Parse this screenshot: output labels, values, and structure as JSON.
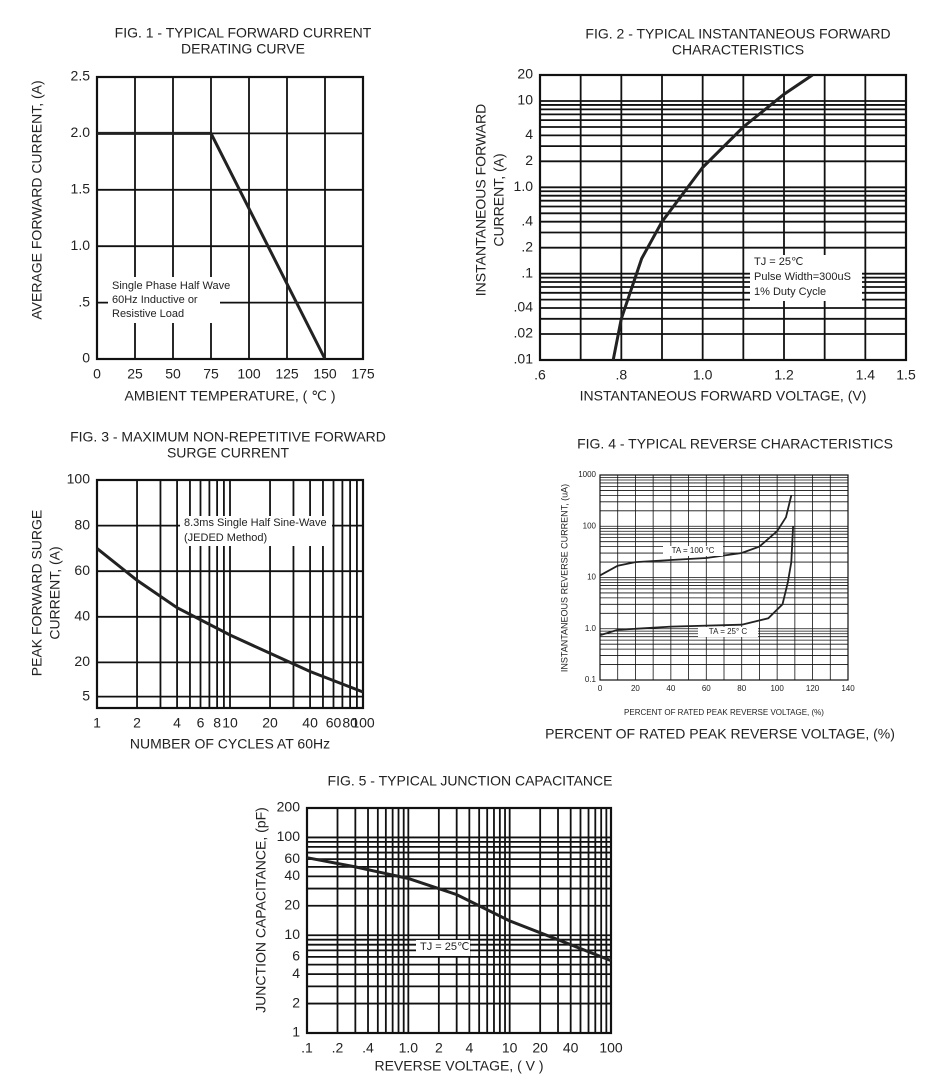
{
  "chart_data": [
    {
      "type": "line",
      "title": [
        "FIG. 1 - TYPICAL FORWARD CURRENT",
        "DERATING CURVE"
      ],
      "xlabel": "AMBIENT TEMPERATURE, ( ℃ )",
      "ylabel": [
        "AVERAGE FORWARD CURRENT, (A)"
      ],
      "xlim": [
        0,
        175
      ],
      "ylim": [
        0,
        2.5
      ],
      "xticks": [
        0,
        25,
        50,
        75,
        100,
        125,
        150,
        175
      ],
      "yticks": [
        0,
        {
          "value": 0.5,
          "label": ".5"
        },
        {
          "value": 1,
          "label": "1.0"
        },
        1.5,
        {
          "value": 2,
          "label": "2.0"
        },
        2.5
      ],
      "grid": true,
      "annotation": [
        "Single Phase Half Wave",
        "60Hz Inductive or",
        "Resistive Load"
      ],
      "series": [
        {
          "color": "#222222",
          "x": [
            0,
            75,
            150
          ],
          "values": [
            2,
            2,
            0
          ]
        }
      ]
    },
    {
      "type": "line",
      "title": [
        "FIG. 2 - TYPICAL INSTANTANEOUS FORWARD",
        "CHARACTERISTICS"
      ],
      "xlabel": "INSTANTANEOUS FORWARD VOLTAGE, (V)",
      "ylabel": [
        "INSTANTANEOUS FORWARD",
        "CURRENT, (A)"
      ],
      "yscale": "log",
      "xlim": [
        0.6,
        1.5
      ],
      "ylim": [
        0.01,
        20
      ],
      "xticks": [
        {
          "value": 0.6,
          "label": ".6"
        },
        {
          "value": 0.8,
          "label": ".8"
        },
        {
          "value": 1,
          "label": "1.0"
        },
        1.2,
        1.4,
        1.5
      ],
      "yticks": [
        {
          "value": 0.01,
          "label": ".01"
        },
        {
          "value": 0.02,
          "label": ".02"
        },
        {
          "value": 0.04,
          "label": ".04"
        },
        {
          "value": 0.1,
          "label": ".1"
        },
        {
          "value": 0.2,
          "label": ".2"
        },
        {
          "value": 0.4,
          "label": ".4"
        },
        {
          "value": 1,
          "label": "1.0"
        },
        2,
        4,
        10,
        20
      ],
      "xgrid": [
        0.7,
        0.9,
        1.1,
        1.3
      ],
      "ygrid": [
        0.03,
        0.05,
        0.06,
        0.07,
        0.08,
        0.09,
        0.3,
        0.5,
        0.6,
        0.7,
        0.8,
        0.9,
        3,
        5,
        6,
        7,
        8,
        9
      ],
      "grid": true,
      "annotation": [
        "TJ = 25℃",
        "Pulse Width=300uS",
        "1% Duty Cycle"
      ],
      "series": [
        {
          "color": "#222222",
          "x": [
            0.78,
            0.8,
            0.85,
            0.9,
            1.0,
            1.1,
            1.2,
            1.27
          ],
          "values": [
            0.01,
            0.03,
            0.15,
            0.4,
            1.7,
            5,
            12,
            20
          ]
        }
      ]
    },
    {
      "type": "line",
      "title": [
        "FIG. 3 - MAXIMUM NON-REPETITIVE FORWARD",
        "SURGE CURRENT"
      ],
      "xlabel": "NUMBER OF CYCLES AT 60Hz",
      "ylabel": [
        "PEAK FORWARD SURGE",
        "CURRENT, (A)"
      ],
      "xscale": "log",
      "xlim": [
        1,
        100
      ],
      "ylim": [
        0,
        100
      ],
      "xticks": [
        1,
        2,
        4,
        6,
        8,
        10,
        20,
        40,
        60,
        80,
        100
      ],
      "yticks": [
        5,
        20,
        40,
        60,
        80,
        100
      ],
      "xgrid": [
        3,
        5,
        7,
        9,
        30,
        50,
        70,
        90
      ],
      "grid": true,
      "annotation": [
        "8.3ms Single Half Sine-Wave",
        "(JEDED Method)"
      ],
      "series": [
        {
          "color": "#222222",
          "x": [
            1,
            2,
            4,
            10,
            20,
            40,
            100
          ],
          "values": [
            70,
            56,
            44,
            32,
            24,
            16,
            7
          ]
        }
      ]
    },
    {
      "type": "line",
      "title": [
        "FIG. 4 - TYPICAL REVERSE CHARACTERISTICS"
      ],
      "xlabel": "PERCENT OF RATED PEAK REVERSE VOLTAGE, (%)",
      "caption": "PERCENT OF RATED PEAK REVERSE VOLTAGE, (%)",
      "ylabel": [
        "INSTANTANEOUS REVERSE CURRENT, (uA)"
      ],
      "yscale": "log",
      "xlim": [
        0,
        140
      ],
      "ylim": [
        0.1,
        1000
      ],
      "xticks": [
        0,
        20,
        40,
        60,
        80,
        100,
        120,
        140
      ],
      "yticks": [
        0.1,
        {
          "value": 1,
          "label": "1.0"
        },
        10,
        100,
        1000
      ],
      "xgrid": [
        10,
        30,
        50,
        70,
        90,
        110,
        130
      ],
      "ygrid": [
        0.2,
        0.3,
        0.4,
        0.5,
        0.6,
        0.7,
        0.8,
        0.9,
        2,
        3,
        4,
        5,
        6,
        7,
        8,
        9,
        20,
        30,
        40,
        50,
        60,
        70,
        80,
        90,
        200,
        300,
        400,
        500,
        600,
        700,
        800,
        900
      ],
      "grid": true,
      "series": [
        {
          "name": "TA = 100 °C",
          "color": "#222222",
          "x": [
            0,
            10,
            20,
            40,
            60,
            80,
            90,
            100,
            105,
            108
          ],
          "values": [
            11,
            17,
            20,
            22,
            24,
            30,
            40,
            80,
            150,
            400
          ]
        },
        {
          "name": "TA = 25° C",
          "color": "#222222",
          "x": [
            0,
            10,
            40,
            80,
            95,
            103,
            106,
            108,
            109
          ],
          "values": [
            0.75,
            0.95,
            1.1,
            1.2,
            1.6,
            3,
            8,
            20,
            100
          ]
        }
      ]
    },
    {
      "type": "line",
      "title": [
        "FIG. 5 - TYPICAL JUNCTION CAPACITANCE"
      ],
      "xlabel": "REVERSE VOLTAGE, ( V )",
      "ylabel": [
        "JUNCTION CAPACITANCE, (pF)"
      ],
      "xscale": "log",
      "yscale": "log",
      "xlim": [
        0.1,
        100
      ],
      "ylim": [
        1,
        200
      ],
      "xticks": [
        {
          "value": 0.1,
          "label": ".1"
        },
        {
          "value": 0.2,
          "label": ".2"
        },
        {
          "value": 0.4,
          "label": ".4"
        },
        {
          "value": 1,
          "label": "1.0"
        },
        2,
        4,
        10,
        20,
        40,
        100
      ],
      "yticks": [
        1,
        2,
        4,
        6,
        10,
        20,
        40,
        60,
        100,
        200
      ],
      "xgrid": [
        0.3,
        0.5,
        0.6,
        0.7,
        0.8,
        0.9,
        3,
        5,
        6,
        7,
        8,
        9,
        30,
        50,
        60,
        70,
        80,
        90
      ],
      "ygrid": [
        3,
        5,
        7,
        8,
        9,
        30,
        50,
        70,
        80,
        90
      ],
      "grid": true,
      "annotation": [
        "TJ = 25℃"
      ],
      "series": [
        {
          "color": "#222222",
          "x": [
            0.1,
            0.3,
            1,
            3,
            10,
            30,
            100
          ],
          "values": [
            62,
            50,
            38,
            26,
            14,
            9,
            5.5
          ]
        }
      ]
    }
  ]
}
